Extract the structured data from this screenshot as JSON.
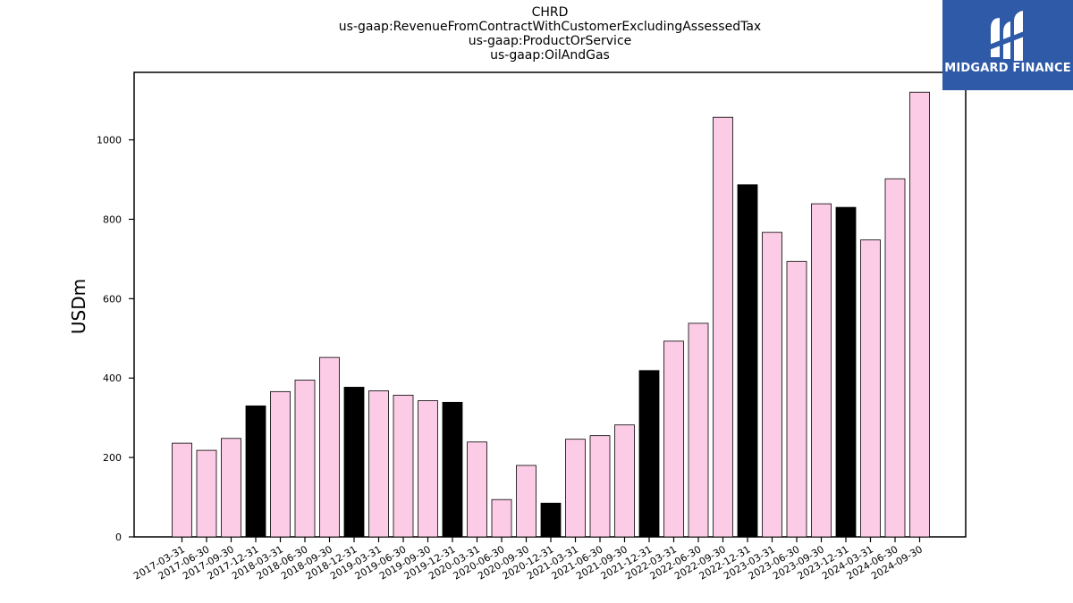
{
  "chart_data": {
    "type": "bar",
    "title_lines": [
      "CHRD",
      "us-gaap:RevenueFromContractWithCustomerExcludingAssessedTax",
      "us-gaap:ProductOrService",
      "us-gaap:OilAndGas"
    ],
    "xlabel": "",
    "ylabel": "USDm",
    "ylim": [
      0,
      1170
    ],
    "yticks": [
      0,
      200,
      400,
      600,
      800,
      1000
    ],
    "categories": [
      "2017-03-31",
      "2017-06-30",
      "2017-09-30",
      "2017-12-31",
      "2018-03-31",
      "2018-06-30",
      "2018-09-30",
      "2018-12-31",
      "2019-03-31",
      "2019-06-30",
      "2019-09-30",
      "2019-12-31",
      "2020-03-31",
      "2020-06-30",
      "2020-09-30",
      "2020-12-31",
      "2021-03-31",
      "2021-06-30",
      "2021-09-30",
      "2021-12-31",
      "2022-03-31",
      "2022-06-30",
      "2022-09-30",
      "2022-12-31",
      "2023-03-31",
      "2023-06-30",
      "2023-09-30",
      "2023-12-31",
      "2024-03-31",
      "2024-06-30",
      "2024-09-30"
    ],
    "values": [
      236,
      218,
      248,
      330,
      366,
      395,
      452,
      377,
      368,
      357,
      343,
      339,
      239,
      94,
      180,
      85,
      246,
      255,
      282,
      419,
      493,
      538,
      1057,
      887,
      767,
      694,
      839,
      830,
      748,
      902,
      1120
    ],
    "colors": {
      "quarter": "#fccce6",
      "year_end": "#000000",
      "edge": "#000000"
    },
    "bar_color_keys": [
      "quarter",
      "quarter",
      "quarter",
      "year_end",
      "quarter",
      "quarter",
      "quarter",
      "year_end",
      "quarter",
      "quarter",
      "quarter",
      "year_end",
      "quarter",
      "quarter",
      "quarter",
      "year_end",
      "quarter",
      "quarter",
      "quarter",
      "year_end",
      "quarter",
      "quarter",
      "quarter",
      "year_end",
      "quarter",
      "quarter",
      "quarter",
      "year_end",
      "quarter",
      "quarter",
      "quarter"
    ],
    "grid": false,
    "legend": "none"
  },
  "logo": {
    "text": "MIDGARD FINANCE",
    "background": "#2f5aa8"
  }
}
